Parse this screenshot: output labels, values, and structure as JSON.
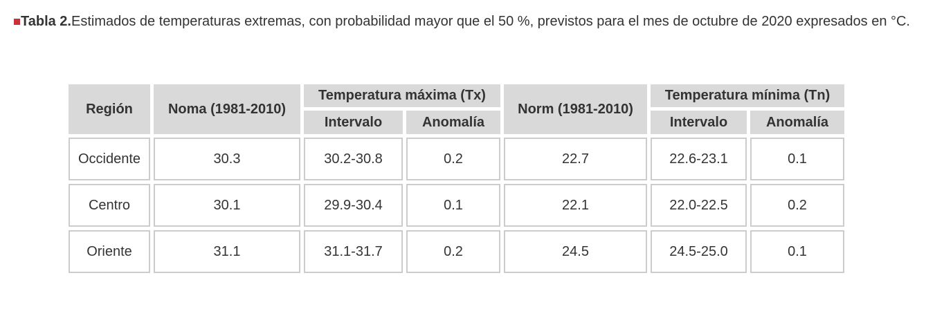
{
  "caption": {
    "label": "Tabla 2.",
    "text": "Estimados de temperaturas extremas, con probabilidad mayor que el 50 %, previstos para el mes de octubre de 2020 expresados en °C."
  },
  "table": {
    "headers": {
      "region": "Región",
      "norm_tx": "Noma (1981-2010)",
      "tx_group": "Temperatura máxima (Tx)",
      "tx_interval": "Intervalo",
      "tx_anomaly": "Anomalía",
      "norm_tn": "Norm (1981-2010)",
      "tn_group": "Temperatura mínima (Tn)",
      "tn_interval": "Intervalo",
      "tn_anomaly": "Anomalía"
    },
    "rows": [
      {
        "region": "Occidente",
        "norm_tx": "30.3",
        "tx_interval": "30.2-30.8",
        "tx_anomaly": "0.2",
        "norm_tn": "22.7",
        "tn_interval": "22.6-23.1",
        "tn_anomaly": "0.1"
      },
      {
        "region": "Centro",
        "norm_tx": "30.1",
        "tx_interval": "29.9-30.4",
        "tx_anomaly": "0.1",
        "norm_tn": "22.1",
        "tn_interval": "22.0-22.5",
        "tn_anomaly": "0.2"
      },
      {
        "region": "Oriente",
        "norm_tx": "31.1",
        "tx_interval": "31.1-31.7",
        "tx_anomaly": "0.2",
        "norm_tn": "24.5",
        "tn_interval": "24.5-25.0",
        "tn_anomaly": "0.1"
      }
    ]
  },
  "colors": {
    "marker": "#c8323a",
    "header_bg": "#d9d9d9",
    "cell_border": "#cccccc"
  }
}
